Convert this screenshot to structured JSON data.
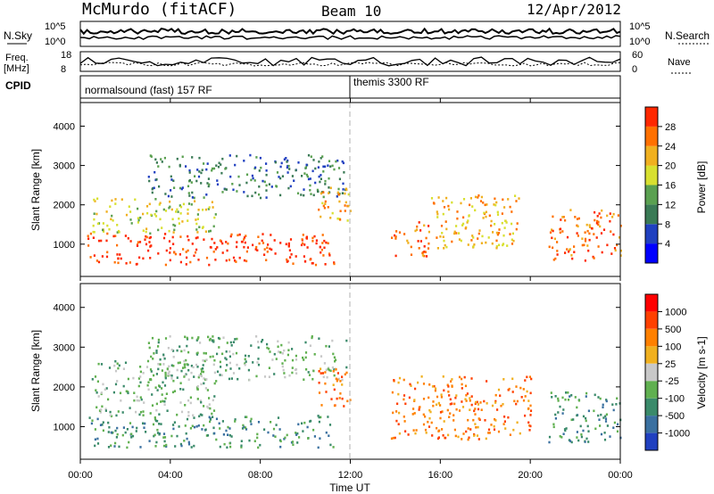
{
  "header": {
    "station": "McMurdo (fitACF)",
    "beam": "Beam 10",
    "date": "12/Apr/2012"
  },
  "summary": {
    "nsky_label": "N.Sky",
    "nsearch_label": "N.Search",
    "freq_label": "Freq.",
    "freq_unit": "[MHz]",
    "nave_label": "Nave",
    "cpid_label": "CPID",
    "nsky_ticks": [
      "10^5",
      "10^0"
    ],
    "freq_ticks": [
      "18",
      "8"
    ],
    "nave_ticks": [
      "60",
      "0"
    ],
    "cpid_segments": [
      {
        "label": "normalsound (fast) 157 RF",
        "start_hour": 0,
        "end_hour": 12
      },
      {
        "label": "themis 3300 RF",
        "start_hour": 12,
        "end_hour": 24
      }
    ]
  },
  "chart_data": [
    {
      "type": "heatmap",
      "name": "power",
      "xlabel": "",
      "ylabel": "Slant Range [km]",
      "xlim": [
        0,
        24
      ],
      "ylim": [
        180,
        4600
      ],
      "yticks": [
        1000,
        2000,
        3000,
        4000
      ],
      "colorbar": {
        "label": "Power [dB]",
        "ticks": [
          "28",
          "24",
          "20",
          "16",
          "12",
          "8",
          "4"
        ],
        "colors": [
          "#0000ff",
          "#2040c0",
          "#3a7a55",
          "#5aa050",
          "#d8e030",
          "#f0b020",
          "#ff7000",
          "#ff2800"
        ]
      },
      "regions": [
        {
          "x": [
            0.3,
            11.3
          ],
          "y": [
            500,
            1300
          ],
          "level": 7
        },
        {
          "x": [
            0.5,
            6.0
          ],
          "y": [
            1300,
            2200
          ],
          "level": 4
        },
        {
          "x": [
            3.0,
            11.8
          ],
          "y": [
            2200,
            3300
          ],
          "level": 2
        },
        {
          "x": [
            10.5,
            12.0
          ],
          "y": [
            1500,
            2500
          ],
          "level": 5
        },
        {
          "x": [
            13.8,
            15.5
          ],
          "y": [
            700,
            1600
          ],
          "level": 6
        },
        {
          "x": [
            15.5,
            19.5
          ],
          "y": [
            900,
            2300
          ],
          "level": 5
        },
        {
          "x": [
            20.8,
            24.0
          ],
          "y": [
            600,
            1900
          ],
          "level": 6
        }
      ]
    },
    {
      "type": "heatmap",
      "name": "velocity",
      "xlabel": "Time UT",
      "ylabel": "Slant Range [km]",
      "xlim": [
        0,
        24
      ],
      "ylim": [
        180,
        4600
      ],
      "yticks": [
        1000,
        2000,
        3000,
        4000
      ],
      "xticks": [
        "00:00",
        "04:00",
        "08:00",
        "12:00",
        "16:00",
        "20:00",
        "00:00"
      ],
      "colorbar": {
        "label": "Velocity [m s-1]",
        "ticks": [
          "1000",
          "500",
          "100",
          "25",
          "-25",
          "-100",
          "-500",
          "-1000"
        ],
        "colors": [
          "#2040c0",
          "#3a70a0",
          "#3a8a6a",
          "#60b050",
          "#c8c8c8",
          "#f0b020",
          "#ff8000",
          "#ff4000",
          "#ff0000"
        ]
      },
      "regions": [
        {
          "x": [
            0.3,
            11.3
          ],
          "y": [
            500,
            1300
          ],
          "level": 2
        },
        {
          "x": [
            0.5,
            6.0
          ],
          "y": [
            1300,
            2700
          ],
          "level": 3
        },
        {
          "x": [
            3.0,
            11.8
          ],
          "y": [
            2200,
            3300
          ],
          "level": 3
        },
        {
          "x": [
            10.5,
            12.0
          ],
          "y": [
            1500,
            2500
          ],
          "level": 6
        },
        {
          "x": [
            13.8,
            20.0
          ],
          "y": [
            700,
            2300
          ],
          "level": 6
        },
        {
          "x": [
            20.8,
            24.0
          ],
          "y": [
            600,
            1900
          ],
          "level": 2
        }
      ]
    }
  ],
  "colors": {
    "cpid_divider": "#000000",
    "noon_marker": "#b0b0b0"
  }
}
